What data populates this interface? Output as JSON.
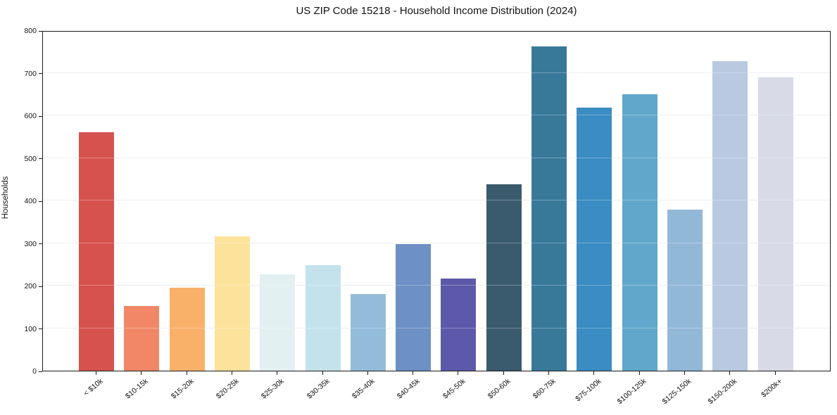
{
  "figure": {
    "title": "US ZIP Code 15218 - Household Income Distribution (2024)",
    "background_color": "#ffffff",
    "spine_color": "#1a1a1a",
    "grid_color": "#e9e9ef"
  },
  "chart_data": {
    "type": "bar",
    "title": "US ZIP Code 15218 - Household Income Distribution (2024)",
    "xlabel": "",
    "ylabel": "Households",
    "ylim": [
      0,
      800
    ],
    "ytick_step": 100,
    "yticks": [
      0,
      100,
      200,
      300,
      400,
      500,
      600,
      700,
      800
    ],
    "grid": "horizontal",
    "legend_position": "none",
    "categories": [
      "< $10k",
      "$10-15k",
      "$15-20k",
      "$20-25k",
      "$25-30k",
      "$30-35k",
      "$35-40k",
      "$40-45k",
      "$45-50k",
      "$50-60k",
      "$60-75k",
      "$75-100k",
      "$100-125k",
      "$125-150k",
      "$150-200k",
      "$200k+"
    ],
    "values": [
      560,
      152,
      195,
      315,
      226,
      248,
      180,
      298,
      216,
      438,
      762,
      618,
      650,
      378,
      727,
      690
    ],
    "bar_colors": [
      "#d6524f",
      "#f28767",
      "#f9b16a",
      "#fde29b",
      "#e3f0f2",
      "#c3e2ec",
      "#93bcdb",
      "#6d90c5",
      "#5d59aa",
      "#3a5a6d",
      "#38799a",
      "#3a8cc2",
      "#60a7cb",
      "#92b8d8",
      "#b8c9e0",
      "#d8dae8"
    ]
  }
}
